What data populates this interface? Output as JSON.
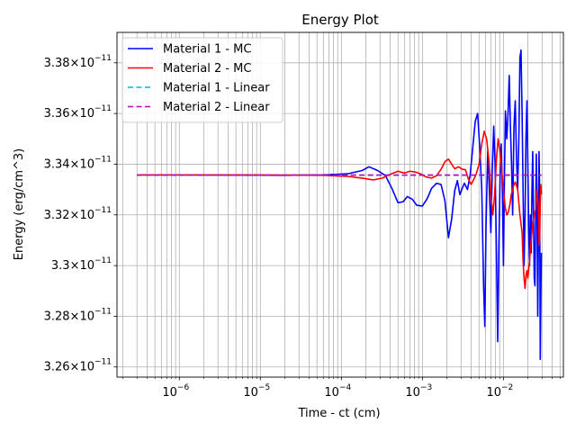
{
  "chart_data": {
    "type": "line",
    "title": "Energy Plot",
    "xlabel": "Time - ct (cm)",
    "ylabel": "Energy (erg/cm^3)",
    "x_scale": "log",
    "xlim": [
      1.7e-07,
      0.055
    ],
    "ylim": [
      3.256e-11,
      3.392e-11
    ],
    "grid": true,
    "grid_minor_x": true,
    "legend_position": "top-left",
    "x_ticks": [
      {
        "value": 1e-06,
        "base": "10",
        "exp": "−6"
      },
      {
        "value": 1e-05,
        "base": "10",
        "exp": "−5"
      },
      {
        "value": 0.0001,
        "base": "10",
        "exp": "−4"
      },
      {
        "value": 0.001,
        "base": "10",
        "exp": "−3"
      },
      {
        "value": 0.01,
        "base": "10",
        "exp": "−2"
      }
    ],
    "y_ticks": [
      {
        "value": 3.26e-11,
        "mant": "3.26",
        "exp": "−11"
      },
      {
        "value": 3.28e-11,
        "mant": "3.28",
        "exp": "−11"
      },
      {
        "value": 3.3e-11,
        "mant": "3.3",
        "exp": "−11"
      },
      {
        "value": 3.32e-11,
        "mant": "3.32",
        "exp": "−11"
      },
      {
        "value": 3.34e-11,
        "mant": "3.34",
        "exp": "−11"
      },
      {
        "value": 3.36e-11,
        "mant": "3.36",
        "exp": "−11"
      },
      {
        "value": 3.38e-11,
        "mant": "3.38",
        "exp": "−11"
      }
    ],
    "series": [
      {
        "name": "Material 1 - MC",
        "color": "#0000ff",
        "style": "solid",
        "points": [
          [
            3e-07,
            3.3358e-11
          ],
          [
            1e-06,
            3.3358e-11
          ],
          [
            5e-06,
            3.3357e-11
          ],
          [
            2e-05,
            3.3356e-11
          ],
          [
            6e-05,
            3.3358e-11
          ],
          [
            0.00012,
            3.3362e-11
          ],
          [
            0.00018,
            3.3375e-11
          ],
          [
            0.00022,
            3.339e-11
          ],
          [
            0.00028,
            3.3375e-11
          ],
          [
            0.00035,
            3.3355e-11
          ],
          [
            0.00042,
            3.3305e-11
          ],
          [
            0.0005,
            3.3248e-11
          ],
          [
            0.00058,
            3.3252e-11
          ],
          [
            0.00065,
            3.3272e-11
          ],
          [
            0.00075,
            3.3262e-11
          ],
          [
            0.00085,
            3.3238e-11
          ],
          [
            0.001,
            3.3235e-11
          ],
          [
            0.00115,
            3.3265e-11
          ],
          [
            0.0013,
            3.3305e-11
          ],
          [
            0.0015,
            3.3325e-11
          ],
          [
            0.0017,
            3.332e-11
          ],
          [
            0.0019,
            3.3255e-11
          ],
          [
            0.0021,
            3.311e-11
          ],
          [
            0.0023,
            3.3185e-11
          ],
          [
            0.0025,
            3.3295e-11
          ],
          [
            0.0027,
            3.3335e-11
          ],
          [
            0.0029,
            3.328e-11
          ],
          [
            0.0031,
            3.3305e-11
          ],
          [
            0.0033,
            3.3325e-11
          ],
          [
            0.0036,
            3.33e-11
          ],
          [
            0.0039,
            3.336e-11
          ],
          [
            0.0042,
            3.347e-11
          ],
          [
            0.0045,
            3.357e-11
          ],
          [
            0.0048,
            3.36e-11
          ],
          [
            0.0051,
            3.347e-11
          ],
          [
            0.0054,
            3.33e-11
          ],
          [
            0.0057,
            3.291e-11
          ],
          [
            0.0059,
            3.276e-11
          ],
          [
            0.0061,
            3.315e-11
          ],
          [
            0.0064,
            3.345e-11
          ],
          [
            0.0067,
            3.33e-11
          ],
          [
            0.007,
            3.313e-11
          ],
          [
            0.0073,
            3.338e-11
          ],
          [
            0.0076,
            3.355e-11
          ],
          [
            0.0079,
            3.34e-11
          ],
          [
            0.0082,
            3.305e-11
          ],
          [
            0.0085,
            3.27e-11
          ],
          [
            0.0088,
            3.31e-11
          ],
          [
            0.0091,
            3.335e-11
          ],
          [
            0.0094,
            3.348e-11
          ],
          [
            0.0097,
            3.33e-11
          ],
          [
            0.01,
            3.3e-11
          ],
          [
            0.0103,
            3.335e-11
          ],
          [
            0.0106,
            3.361e-11
          ],
          [
            0.011,
            3.35e-11
          ],
          [
            0.0114,
            3.36e-11
          ],
          [
            0.0118,
            3.375e-11
          ],
          [
            0.0122,
            3.355e-11
          ],
          [
            0.0126,
            3.34e-11
          ],
          [
            0.013,
            3.32e-11
          ],
          [
            0.0135,
            3.355e-11
          ],
          [
            0.014,
            3.365e-11
          ],
          [
            0.0145,
            3.342e-11
          ],
          [
            0.015,
            3.33e-11
          ],
          [
            0.0155,
            3.35e-11
          ],
          [
            0.016,
            3.382e-11
          ],
          [
            0.0165,
            3.385e-11
          ],
          [
            0.017,
            3.36e-11
          ],
          [
            0.0175,
            3.33e-11
          ],
          [
            0.018,
            3.3e-11
          ],
          [
            0.0185,
            3.32e-11
          ],
          [
            0.019,
            3.35e-11
          ],
          [
            0.0195,
            3.365e-11
          ],
          [
            0.02,
            3.34e-11
          ],
          [
            0.0205,
            3.315e-11
          ],
          [
            0.021,
            3.3e-11
          ],
          [
            0.0215,
            3.32e-11
          ],
          [
            0.022,
            3.305e-11
          ],
          [
            0.0225,
            3.33e-11
          ],
          [
            0.023,
            3.345e-11
          ],
          [
            0.0235,
            3.32e-11
          ],
          [
            0.024,
            3.295e-11
          ],
          [
            0.0245,
            3.292e-11
          ],
          [
            0.025,
            3.32e-11
          ],
          [
            0.0255,
            3.344e-11
          ],
          [
            0.026,
            3.325e-11
          ],
          [
            0.0265,
            3.28e-11
          ],
          [
            0.027,
            3.31e-11
          ],
          [
            0.0275,
            3.345e-11
          ],
          [
            0.028,
            3.33e-11
          ],
          [
            0.0285,
            3.263e-11
          ],
          [
            0.029,
            3.29e-11
          ],
          [
            0.0295,
            3.305e-11
          ]
        ]
      },
      {
        "name": "Material 2 - MC",
        "color": "#ff0000",
        "style": "solid",
        "points": [
          [
            3e-07,
            3.3358e-11
          ],
          [
            1e-06,
            3.3358e-11
          ],
          [
            5e-06,
            3.3358e-11
          ],
          [
            2e-05,
            3.3357e-11
          ],
          [
            6e-05,
            3.3356e-11
          ],
          [
            0.00012,
            3.3352e-11
          ],
          [
            0.00018,
            3.3345e-11
          ],
          [
            0.00025,
            3.3338e-11
          ],
          [
            0.00032,
            3.3345e-11
          ],
          [
            0.0004,
            3.336e-11
          ],
          [
            0.0005,
            3.3372e-11
          ],
          [
            0.0006,
            3.3365e-11
          ],
          [
            0.0007,
            3.3372e-11
          ],
          [
            0.0008,
            3.337e-11
          ],
          [
            0.00095,
            3.3362e-11
          ],
          [
            0.0011,
            3.335e-11
          ],
          [
            0.0013,
            3.3345e-11
          ],
          [
            0.0015,
            3.3355e-11
          ],
          [
            0.0017,
            3.338e-11
          ],
          [
            0.0019,
            3.341e-11
          ],
          [
            0.0021,
            3.342e-11
          ],
          [
            0.0023,
            3.34e-11
          ],
          [
            0.0025,
            3.3382e-11
          ],
          [
            0.0028,
            3.339e-11
          ],
          [
            0.0031,
            3.338e-11
          ],
          [
            0.0034,
            3.3378e-11
          ],
          [
            0.0037,
            3.334e-11
          ],
          [
            0.004,
            3.332e-11
          ],
          [
            0.0043,
            3.334e-11
          ],
          [
            0.0046,
            3.336e-11
          ],
          [
            0.005,
            3.34e-11
          ],
          [
            0.0054,
            3.348e-11
          ],
          [
            0.0058,
            3.353e-11
          ],
          [
            0.0062,
            3.35e-11
          ],
          [
            0.0066,
            3.342e-11
          ],
          [
            0.007,
            3.328e-11
          ],
          [
            0.0074,
            3.32e-11
          ],
          [
            0.0078,
            3.328e-11
          ],
          [
            0.0082,
            3.342e-11
          ],
          [
            0.0086,
            3.35e-11
          ],
          [
            0.009,
            3.346e-11
          ],
          [
            0.0095,
            3.338e-11
          ],
          [
            0.01,
            3.33e-11
          ],
          [
            0.0105,
            3.323e-11
          ],
          [
            0.011,
            3.32e-11
          ],
          [
            0.0115,
            3.321e-11
          ],
          [
            0.012,
            3.324e-11
          ],
          [
            0.0125,
            3.328e-11
          ],
          [
            0.013,
            3.33e-11
          ],
          [
            0.0135,
            3.332e-11
          ],
          [
            0.014,
            3.333e-11
          ],
          [
            0.015,
            3.33e-11
          ],
          [
            0.016,
            3.32e-11
          ],
          [
            0.017,
            3.313e-11
          ],
          [
            0.0175,
            3.302e-11
          ],
          [
            0.018,
            3.295e-11
          ],
          [
            0.0185,
            3.291e-11
          ],
          [
            0.019,
            3.296e-11
          ],
          [
            0.0195,
            3.298e-11
          ],
          [
            0.02,
            3.295e-11
          ],
          [
            0.021,
            3.302e-11
          ],
          [
            0.022,
            3.31e-11
          ],
          [
            0.023,
            3.316e-11
          ],
          [
            0.024,
            3.32e-11
          ],
          [
            0.025,
            3.322e-11
          ],
          [
            0.026,
            3.33e-11
          ],
          [
            0.027,
            3.323e-11
          ],
          [
            0.0275,
            3.308e-11
          ],
          [
            0.028,
            3.31e-11
          ],
          [
            0.0285,
            3.325e-11
          ],
          [
            0.029,
            3.332e-11
          ],
          [
            0.0295,
            3.328e-11
          ]
        ]
      },
      {
        "name": "Material 1 - Linear",
        "color": "#00bfbf",
        "style": "dashed",
        "points": [
          [
            3e-07,
            3.3357e-11
          ],
          [
            0.0295,
            3.3357e-11
          ]
        ]
      },
      {
        "name": "Material 2 - Linear",
        "color": "#bf00bf",
        "style": "dashed",
        "points": [
          [
            3e-07,
            3.3357e-11
          ],
          [
            0.0295,
            3.3357e-11
          ]
        ]
      }
    ]
  }
}
